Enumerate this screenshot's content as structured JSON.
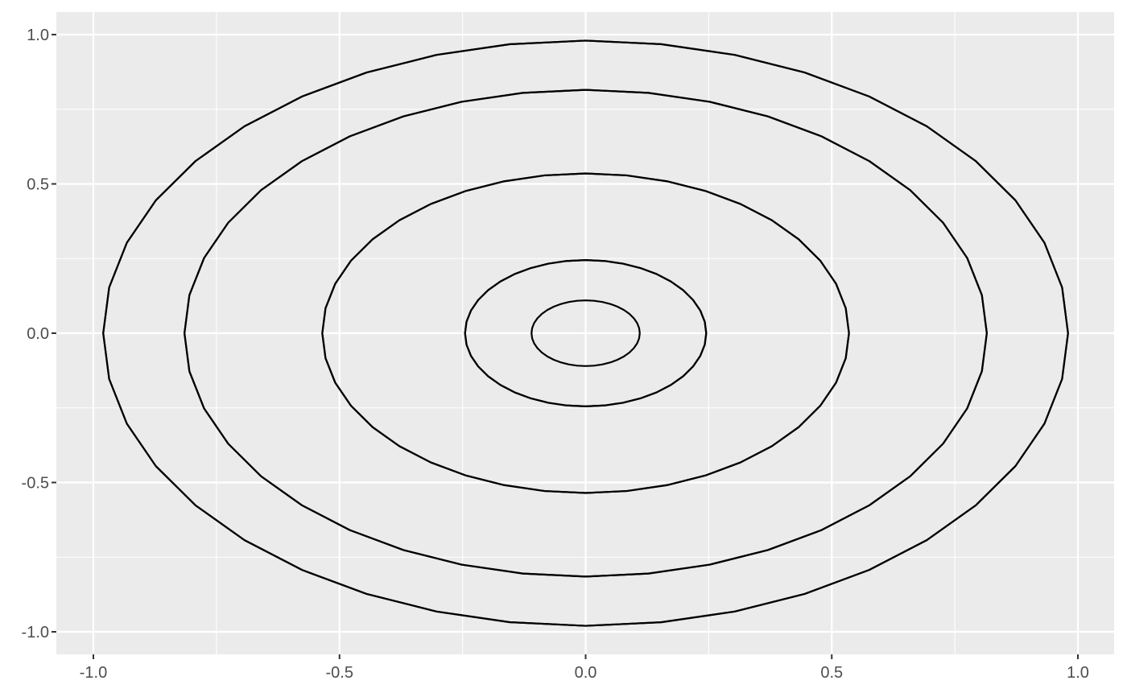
{
  "chart_data": {
    "type": "line",
    "title": "",
    "xlabel": "",
    "ylabel": "",
    "xlim": [
      -1.0,
      1.0
    ],
    "ylim": [
      -1.0,
      1.0
    ],
    "grid": true,
    "legend": "none",
    "x_ticks": [
      {
        "value": -1.0,
        "label": "-1.0"
      },
      {
        "value": -0.5,
        "label": "-0.5"
      },
      {
        "value": 0.0,
        "label": "0.0"
      },
      {
        "value": 0.5,
        "label": "0.5"
      },
      {
        "value": 1.0,
        "label": "1.0"
      }
    ],
    "y_ticks": [
      {
        "value": -1.0,
        "label": "-1.0"
      },
      {
        "value": -0.5,
        "label": "-0.5"
      },
      {
        "value": 0.0,
        "label": "0.0"
      },
      {
        "value": 0.5,
        "label": "0.5"
      },
      {
        "value": 1.0,
        "label": "1.0"
      }
    ],
    "line_color": "#000000",
    "panel_color": "#EBEBEB",
    "series": [
      {
        "cx": 0.0,
        "cy": 0.0,
        "rx": 0.98,
        "ry": 0.98,
        "points": 40
      },
      {
        "cx": 0.0,
        "cy": 0.0,
        "rx": 0.98,
        "ry": 0.98,
        "points": 40
      },
      {
        "cx": 0.0,
        "cy": 0.0,
        "rx": 0.815,
        "ry": 0.815,
        "points": 40
      },
      {
        "cx": 0.0,
        "cy": 0.0,
        "rx": 0.815,
        "ry": 0.815,
        "points": 40
      },
      {
        "cx": 0.0,
        "cy": 0.0,
        "rx": 0.535,
        "ry": 0.535,
        "points": 40
      },
      {
        "cx": 0.0,
        "cy": 0.0,
        "rx": 0.535,
        "ry": 0.535,
        "points": 40
      },
      {
        "cx": 0.0,
        "cy": 0.0,
        "rx": 0.245,
        "ry": 0.245,
        "points": 40
      },
      {
        "cx": 0.0,
        "cy": 0.0,
        "rx": 0.245,
        "ry": 0.245,
        "points": 40
      },
      {
        "cx": 0.0,
        "cy": 0.0,
        "rx": 0.11,
        "ry": 0.11,
        "points": 40
      }
    ]
  }
}
